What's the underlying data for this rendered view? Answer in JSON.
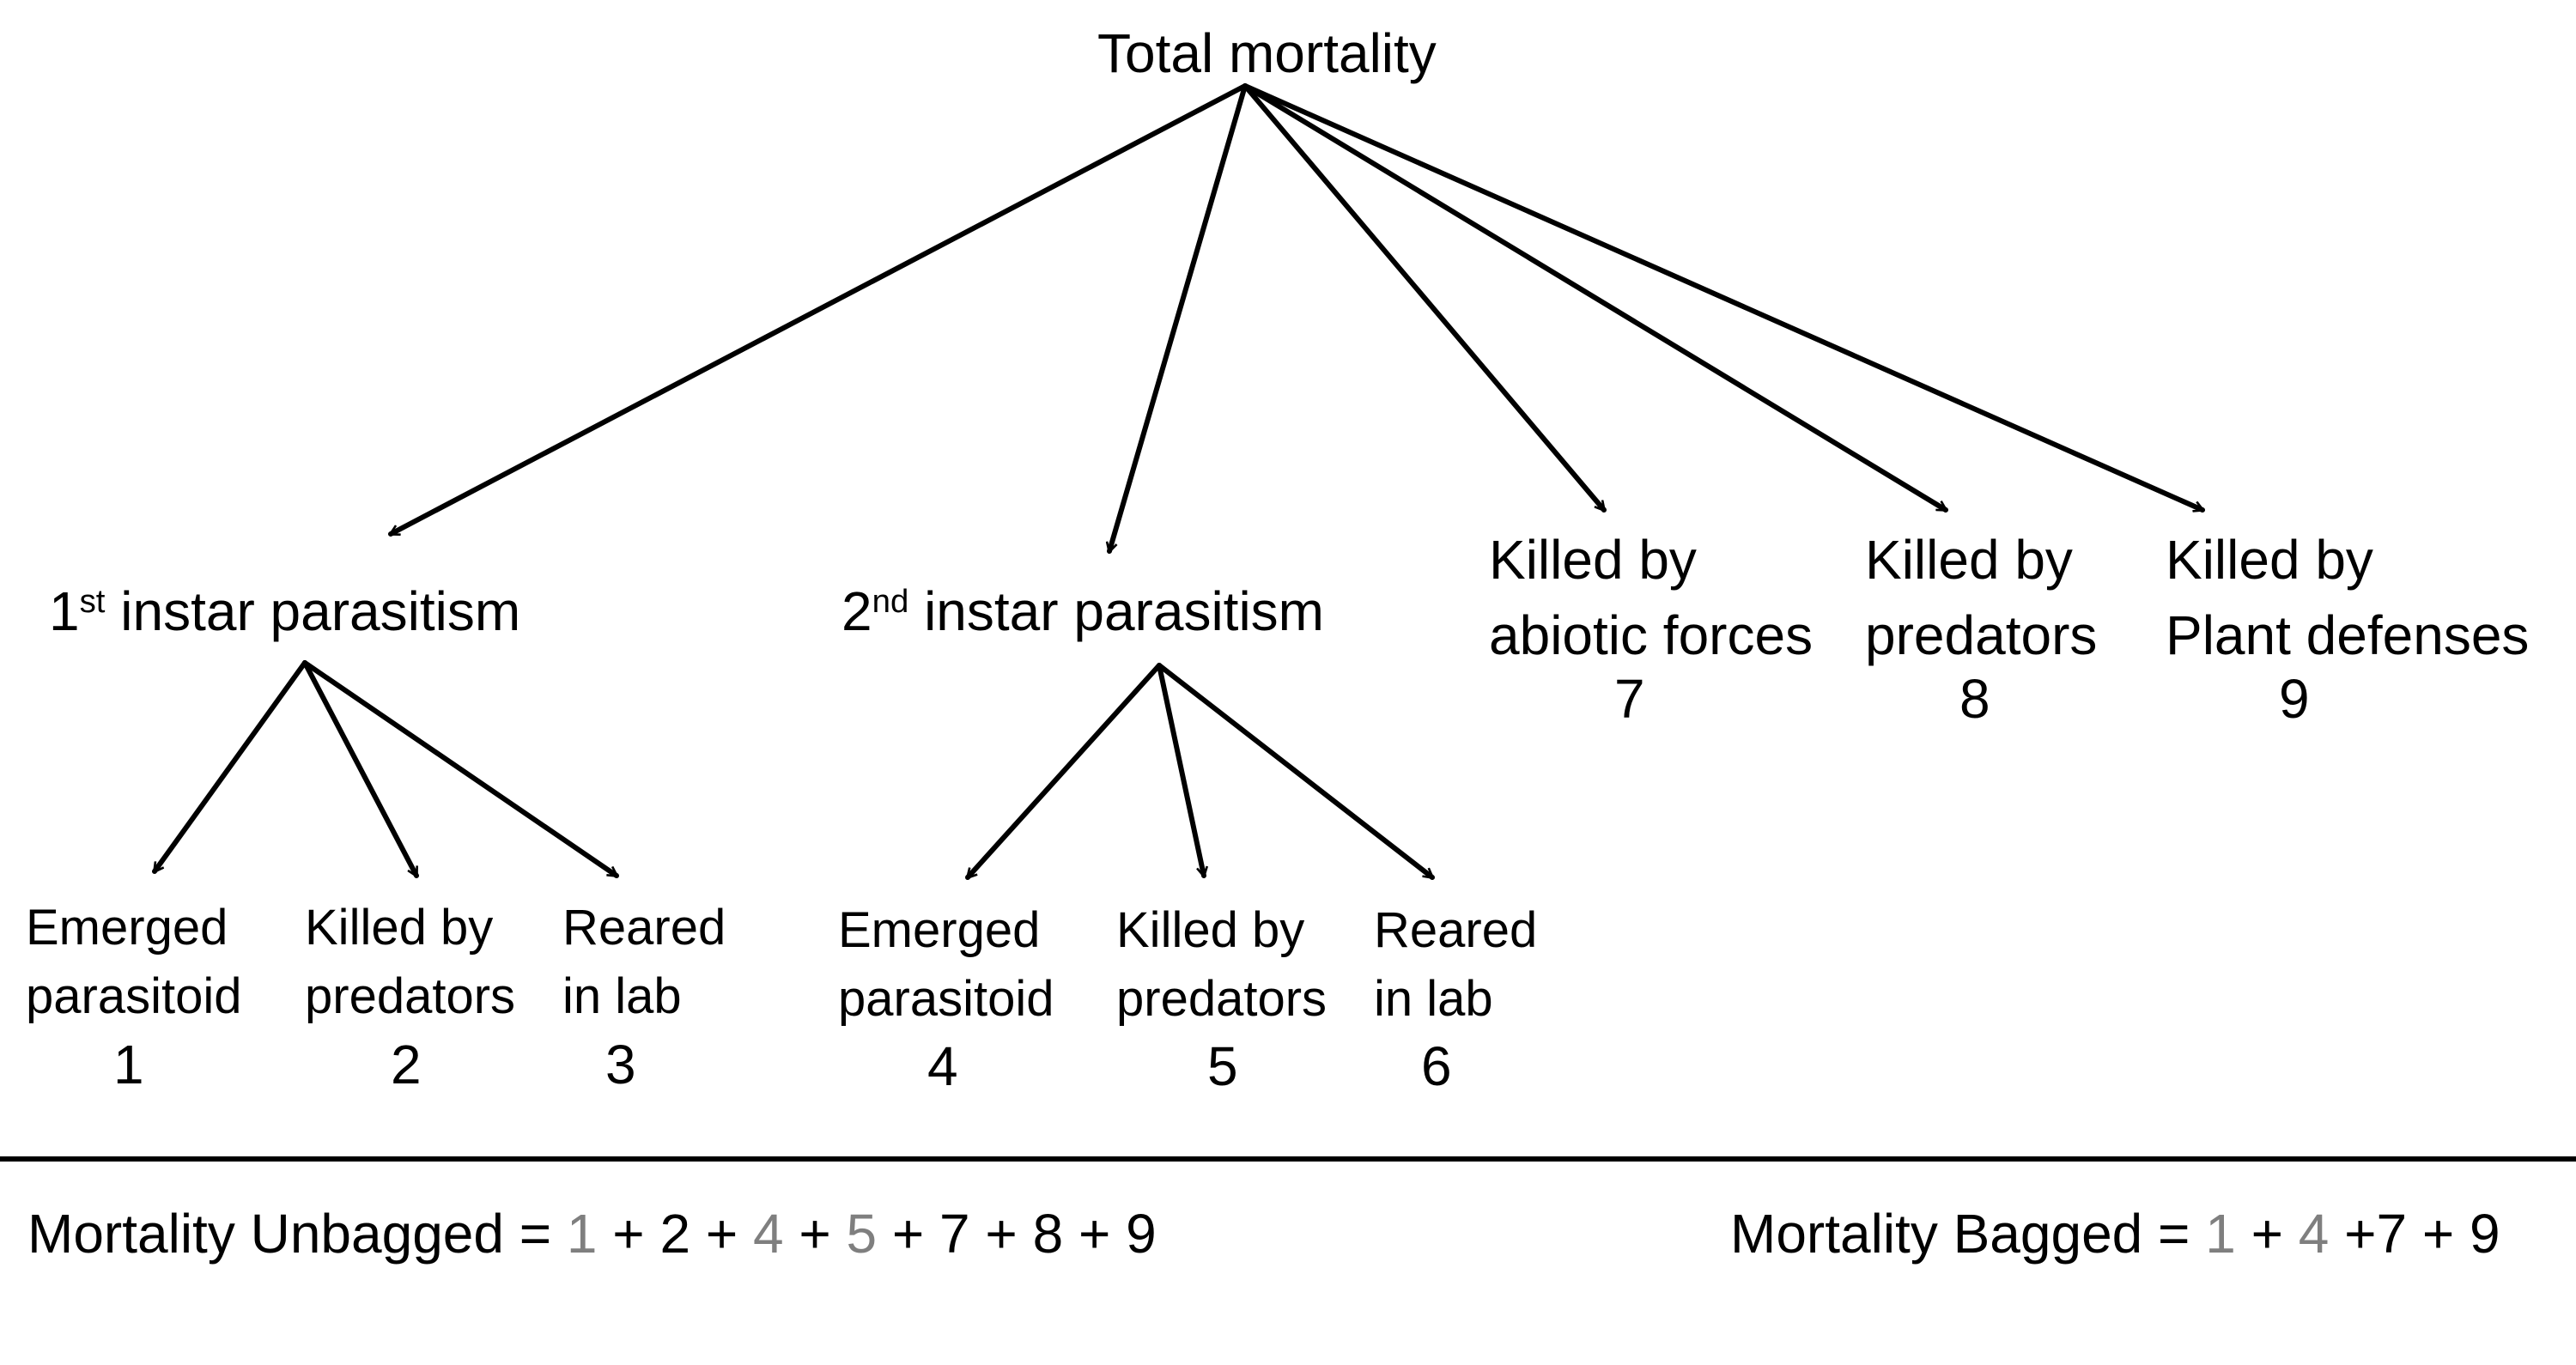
{
  "root": {
    "label": "Total mortality"
  },
  "level1": {
    "first_instar": {
      "ordinal": "1",
      "suffix": "st",
      "label": "instar parasitism"
    },
    "second_instar": {
      "ordinal": "2",
      "suffix": "nd",
      "label": "instar parasitism"
    },
    "abiotic": {
      "line1": "Killed by",
      "line2": "abiotic forces",
      "number": "7"
    },
    "predators": {
      "line1": "Killed by",
      "line2": "predators",
      "number": "8"
    },
    "plant": {
      "line1": "Killed by",
      "line2": "Plant defenses",
      "number": "9"
    }
  },
  "level2": {
    "first": [
      {
        "line1": "Emerged",
        "line2": "parasitoid",
        "number": "1"
      },
      {
        "line1": "Killed by",
        "line2": "predators",
        "number": "2"
      },
      {
        "line1": "Reared",
        "line2": "in lab",
        "number": "3"
      }
    ],
    "second": [
      {
        "line1": "Emerged",
        "line2": "parasitoid",
        "number": "4"
      },
      {
        "line1": "Killed by",
        "line2": "predators",
        "number": "5"
      },
      {
        "line1": "Reared",
        "line2": "in lab",
        "number": "6"
      }
    ]
  },
  "formulas": {
    "unbagged": {
      "prefix": "Mortality Unbagged = ",
      "terms": [
        {
          "text": "1",
          "grey": true
        },
        {
          "text": " + 2 + ",
          "grey": false
        },
        {
          "text": "4",
          "grey": true
        },
        {
          "text": " + ",
          "grey": false
        },
        {
          "text": "5",
          "grey": true
        },
        {
          "text": " + 7 + 8 + 9",
          "grey": false
        }
      ]
    },
    "bagged": {
      "prefix": "Mortality Bagged = ",
      "terms": [
        {
          "text": "1",
          "grey": true
        },
        {
          "text": " + ",
          "grey": false
        },
        {
          "text": "4",
          "grey": true
        },
        {
          "text": " +7 + 9",
          "grey": false
        }
      ]
    }
  },
  "colors": {
    "grey_term": "#7f7f7f",
    "line": "#000000"
  }
}
